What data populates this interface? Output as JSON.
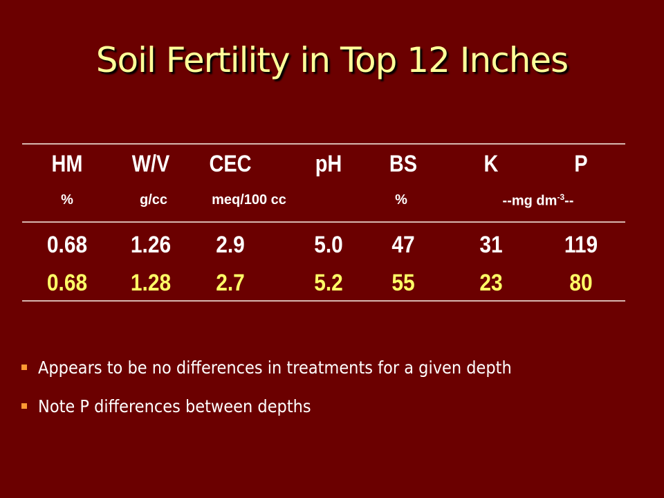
{
  "title": "Soil Fertility in Top 12 Inches",
  "table": {
    "headers": [
      "HM",
      "W/V",
      "CEC",
      "pH",
      "BS",
      "K",
      "P"
    ],
    "units": [
      "%",
      "g/cc",
      "meq/100 cc",
      null,
      "%",
      {
        "text": "--mg dm",
        "sup": "-3",
        "tail": "--"
      }
    ],
    "rows": [
      [
        "0.68",
        "1.26",
        "2.9",
        "5.0",
        "47",
        "31",
        "119"
      ],
      [
        "0.68",
        "1.28",
        "2.7",
        "5.2",
        "55",
        "23",
        "80"
      ]
    ]
  },
  "bullets": [
    "Appears to be no differences in treatments for a given depth",
    "Note P differences between depths"
  ]
}
